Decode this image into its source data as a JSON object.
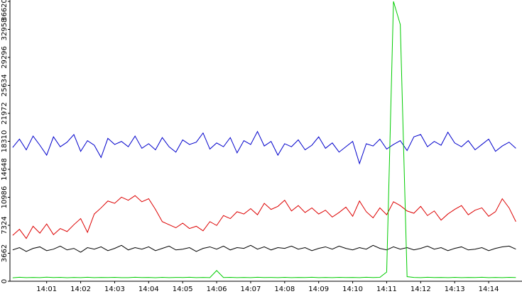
{
  "chart_data": {
    "type": "line",
    "x": [
      840.0,
      840.2,
      840.4,
      840.6,
      840.8,
      841.0,
      841.2,
      841.4,
      841.6,
      841.8,
      842.0,
      842.2,
      842.4,
      842.6,
      842.8,
      843.0,
      843.2,
      843.4,
      843.6,
      843.8,
      844.0,
      844.2,
      844.4,
      844.6,
      844.8,
      845.0,
      845.2,
      845.4,
      845.6,
      845.8,
      846.0,
      846.2,
      846.4,
      846.6,
      846.8,
      847.0,
      847.2,
      847.4,
      847.6,
      847.8,
      848.0,
      848.2,
      848.4,
      848.6,
      848.8,
      849.0,
      849.2,
      849.4,
      849.6,
      849.8,
      850.0,
      850.2,
      850.4,
      850.6,
      850.8,
      851.0,
      851.2,
      851.4,
      851.6,
      851.8,
      852.0,
      852.2,
      852.4,
      852.6,
      852.8,
      853.0,
      853.2,
      853.4,
      853.6,
      853.8,
      854.0,
      854.2,
      854.4,
      854.6,
      854.8
    ],
    "series": [
      {
        "color": "#0000cc",
        "values": [
          17500,
          18600,
          17200,
          19000,
          17800,
          16500,
          18900,
          17600,
          18200,
          19200,
          17000,
          18400,
          17800,
          16200,
          18700,
          17900,
          18300,
          17600,
          19000,
          17400,
          18000,
          17200,
          18800,
          17600,
          16900,
          18500,
          17900,
          18200,
          19400,
          17300,
          18100,
          17600,
          18800,
          16800,
          18400,
          17900,
          19600,
          17700,
          18300,
          16500,
          18000,
          17600,
          18500,
          17200,
          17800,
          18900,
          17400,
          18100,
          16900,
          17600,
          18300,
          15400,
          18000,
          17700,
          18600,
          17300,
          17900,
          18400,
          17100,
          18900,
          19200,
          17600,
          18300,
          17800,
          19500,
          18100,
          17600,
          18400,
          17200,
          17900,
          18600,
          17000,
          17700,
          18200,
          17400
        ]
      },
      {
        "color": "#dd0000",
        "values": [
          6000,
          6800,
          5600,
          7200,
          6300,
          7500,
          6100,
          6900,
          6500,
          7400,
          8200,
          6400,
          8800,
          9600,
          10500,
          10200,
          11000,
          10600,
          11200,
          10400,
          10800,
          9400,
          7800,
          7400,
          7000,
          7600,
          6900,
          7200,
          6600,
          7800,
          7300,
          8600,
          8200,
          9100,
          8800,
          9500,
          8700,
          10200,
          9400,
          9800,
          10600,
          9200,
          9900,
          9000,
          9600,
          8800,
          9300,
          8400,
          9000,
          9700,
          8500,
          10500,
          9100,
          8300,
          9600,
          8700,
          10400,
          9900,
          9200,
          8900,
          9800,
          8600,
          9200,
          8000,
          8800,
          9400,
          9900,
          8700,
          9300,
          9600,
          8500,
          9100,
          10800,
          9600,
          7800
        ]
      },
      {
        "color": "#000000",
        "values": [
          4100,
          4400,
          3900,
          4300,
          4500,
          4000,
          4200,
          4600,
          4100,
          4300,
          3800,
          4400,
          4200,
          4500,
          4000,
          4300,
          4700,
          4100,
          4400,
          4200,
          4500,
          4000,
          4300,
          4600,
          4100,
          4200,
          4400,
          3900,
          4300,
          4500,
          4200,
          4600,
          4100,
          4400,
          4300,
          4700,
          4200,
          4500,
          4100,
          4400,
          4300,
          4600,
          4200,
          4400,
          4000,
          4300,
          4500,
          4200,
          4600,
          4300,
          4100,
          4400,
          4200,
          4700,
          4300,
          4100,
          4500,
          4200,
          4400,
          4100,
          4300,
          4600,
          4200,
          4400,
          4000,
          4300,
          4500,
          4100,
          4200,
          4400,
          4000,
          4300,
          4500,
          4600,
          4200
        ]
      },
      {
        "color": "#00cc00",
        "values": [
          450,
          520,
          480,
          500,
          470,
          530,
          490,
          510,
          460,
          500,
          480,
          520,
          470,
          500,
          490,
          510,
          480,
          470,
          520,
          490,
          500,
          460,
          510,
          480,
          500,
          490,
          520,
          470,
          500,
          480,
          1400,
          490,
          510,
          480,
          500,
          470,
          520,
          490,
          500,
          480,
          510,
          470,
          500,
          490,
          520,
          480,
          500,
          470,
          510,
          490,
          500,
          480,
          520,
          490,
          510,
          1200,
          36620,
          33600,
          600,
          500,
          480,
          520,
          490,
          500,
          470,
          510,
          480,
          500,
          490,
          520,
          470,
          500,
          480,
          510,
          490
        ]
      }
    ],
    "ylim": [
      0,
      36620
    ],
    "yticks": [
      0,
      3662,
      7324,
      10986,
      14648,
      18310,
      21972,
      25634,
      29296,
      32958,
      36620
    ],
    "xlim": [
      839.92,
      854.98
    ],
    "xticks": [
      {
        "value": 841,
        "label": "14:01"
      },
      {
        "value": 842,
        "label": "14:02"
      },
      {
        "value": 843,
        "label": "14:03"
      },
      {
        "value": 844,
        "label": "14:04"
      },
      {
        "value": 845,
        "label": "14:05"
      },
      {
        "value": 846,
        "label": "14:06"
      },
      {
        "value": 847,
        "label": "14:07"
      },
      {
        "value": 848,
        "label": "14:08"
      },
      {
        "value": 849,
        "label": "14:09"
      },
      {
        "value": 850,
        "label": "14:10"
      },
      {
        "value": 851,
        "label": "14:11"
      },
      {
        "value": 852,
        "label": "14:12"
      },
      {
        "value": 853,
        "label": "14:13"
      },
      {
        "value": 854,
        "label": "14:14"
      }
    ]
  }
}
